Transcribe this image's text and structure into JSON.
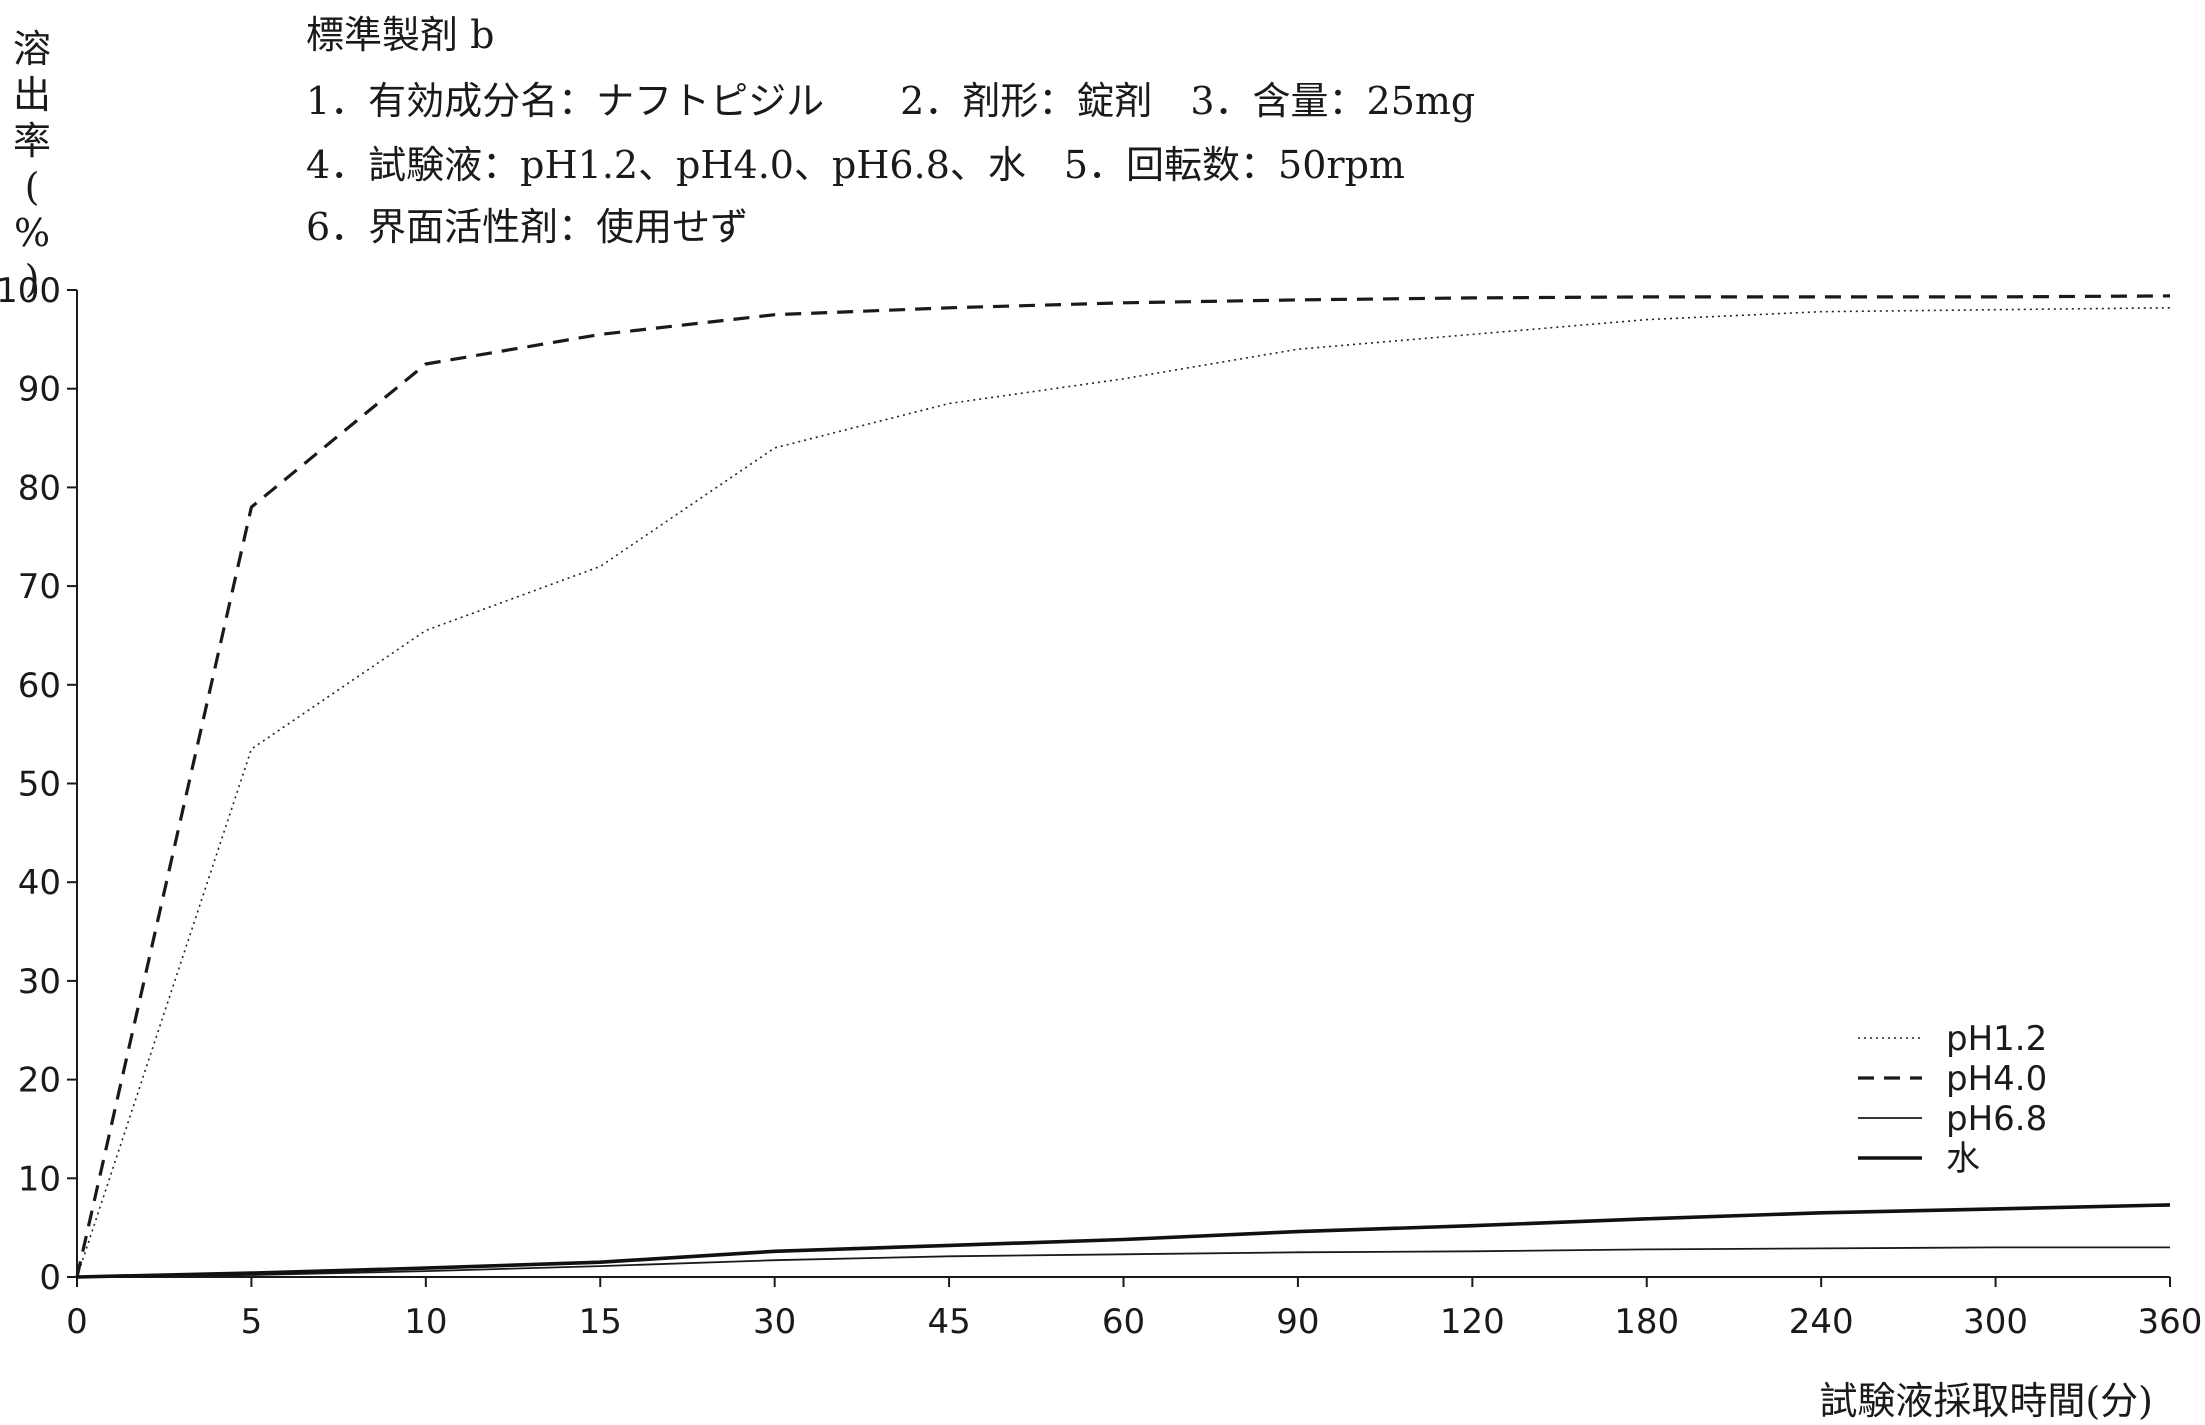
{
  "header": {
    "title": "標準製剤 b",
    "line1": "1．有効成分名：ナフトピジル　　2．剤形：錠剤　3．含量：25mg",
    "line2": "4．試験液：pH1.2、pH4.0、pH6.8、水　5．回転数：50rpm",
    "line3": "6．界面活性剤：使用せず"
  },
  "chart_data": {
    "type": "line",
    "title": "",
    "ylabel": "溶出率(%)",
    "xlabel": "試験液採取時間(分)",
    "categories": [
      "0",
      "5",
      "10",
      "15",
      "30",
      "45",
      "60",
      "90",
      "120",
      "180",
      "240",
      "300",
      "360"
    ],
    "ylim": [
      0,
      100
    ],
    "yticks": [
      "0",
      "10",
      "20",
      "30",
      "40",
      "50",
      "60",
      "70",
      "80",
      "90",
      "100"
    ],
    "grid": false,
    "legend_position": "bottom-right",
    "series": [
      {
        "name": "pH1.2",
        "style": "dotted",
        "color": "#222222",
        "values": [
          0,
          53.5,
          65.5,
          72,
          84,
          88.5,
          91,
          94,
          95.5,
          97,
          97.8,
          98,
          98.2
        ]
      },
      {
        "name": "pH4.0",
        "style": "dashed",
        "color": "#1a1a1a",
        "values": [
          0,
          78,
          92.5,
          95.5,
          97.5,
          98.2,
          98.7,
          99,
          99.2,
          99.3,
          99.3,
          99.3,
          99.4
        ]
      },
      {
        "name": "pH6.8",
        "style": "thin",
        "color": "#1a1a1a",
        "values": [
          0,
          0.2,
          0.6,
          1.1,
          1.7,
          2.1,
          2.3,
          2.5,
          2.6,
          2.8,
          2.9,
          3.0,
          3.0
        ]
      },
      {
        "name": "水",
        "style": "thick",
        "color": "#111111",
        "values": [
          0,
          0.4,
          0.9,
          1.5,
          2.6,
          3.2,
          3.8,
          4.6,
          5.2,
          5.9,
          6.5,
          6.9,
          7.3
        ]
      }
    ]
  }
}
